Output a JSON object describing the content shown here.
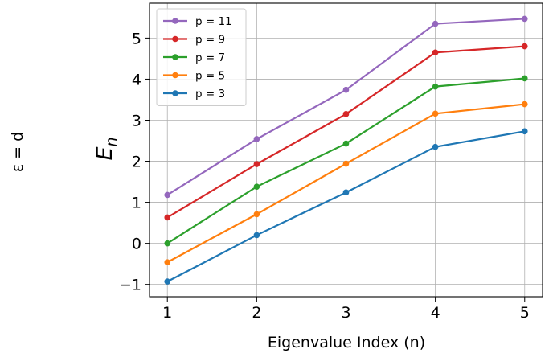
{
  "chart_data": {
    "type": "line",
    "side_label": "ε = d",
    "xlabel": "Eigenvalue Index (n)",
    "ylabel_main": "E",
    "ylabel_sub": "n",
    "x": [
      1,
      2,
      3,
      4,
      5
    ],
    "xlim": [
      0.8,
      5.2
    ],
    "ylim": [
      -1.3,
      5.85
    ],
    "xticks": [
      1,
      2,
      3,
      4,
      5
    ],
    "yticks": [
      -1,
      0,
      1,
      2,
      3,
      4,
      5
    ],
    "ytick_labels": [
      "−1",
      "0",
      "1",
      "2",
      "3",
      "4",
      "5"
    ],
    "grid": true,
    "legend_position": "top-left",
    "series": [
      {
        "name": "p = 11",
        "color": "#9467bd",
        "values": [
          1.18,
          2.54,
          3.74,
          5.35,
          5.47
        ]
      },
      {
        "name": "p = 9",
        "color": "#d62728",
        "values": [
          0.63,
          1.93,
          3.15,
          4.65,
          4.8
        ]
      },
      {
        "name": "p = 7",
        "color": "#2ca02c",
        "values": [
          0.0,
          1.38,
          2.43,
          3.82,
          4.02
        ]
      },
      {
        "name": "p = 5",
        "color": "#ff7f0e",
        "values": [
          -0.46,
          0.71,
          1.94,
          3.16,
          3.39
        ]
      },
      {
        "name": "p = 3",
        "color": "#1f77b4",
        "values": [
          -0.93,
          0.2,
          1.24,
          2.35,
          2.73
        ]
      }
    ]
  }
}
